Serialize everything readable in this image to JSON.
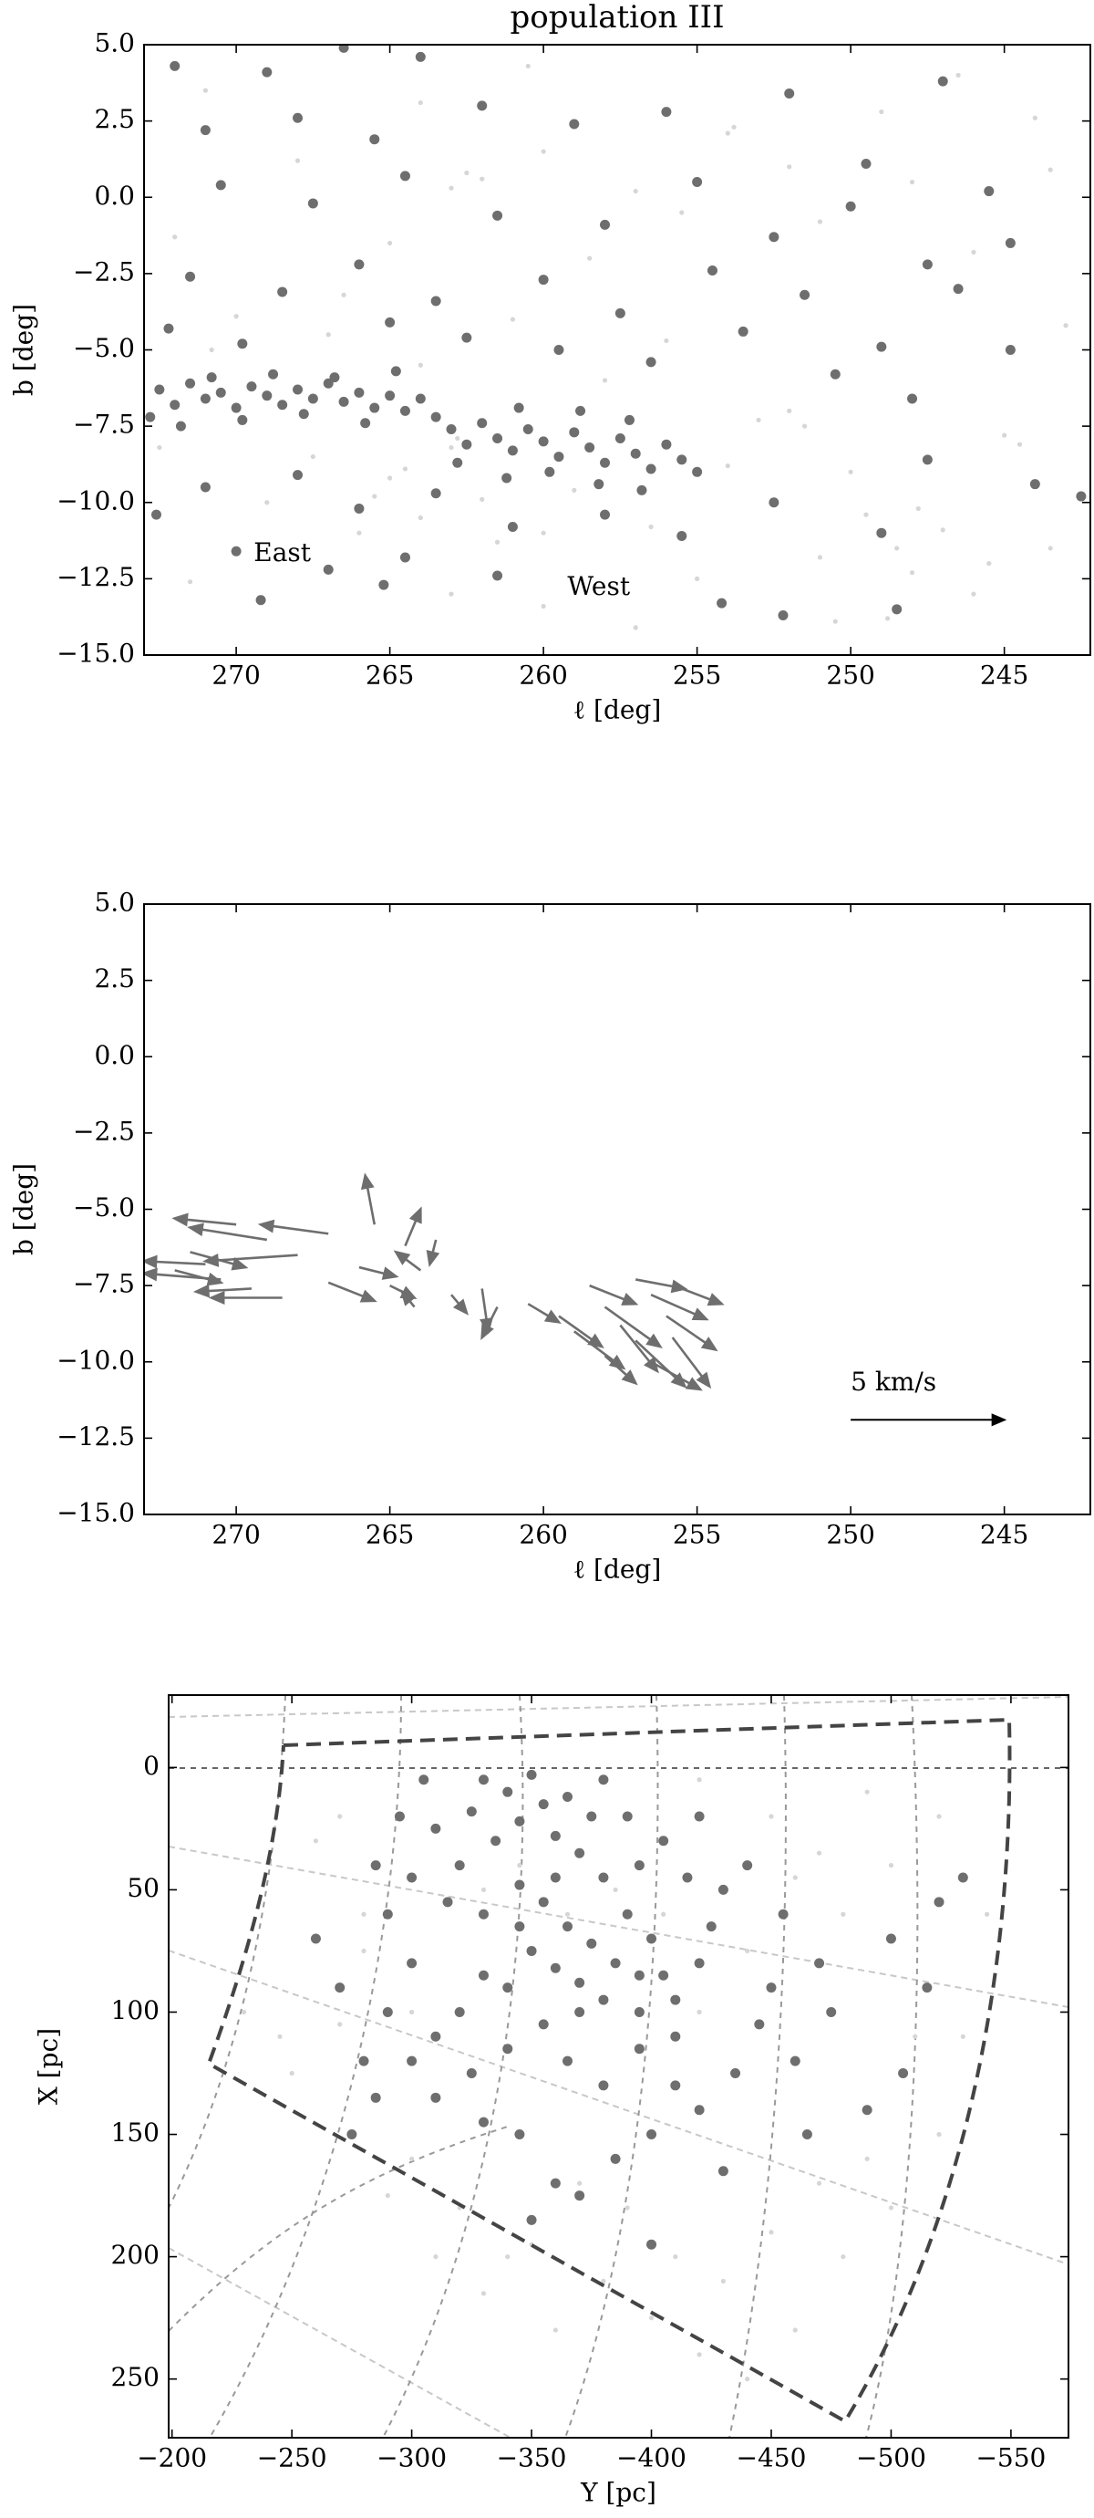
{
  "chart_data": [
    {
      "type": "scatter",
      "title": "population III",
      "xlabel": "ℓ [deg]",
      "ylabel": "b [deg]",
      "xlim": [
        273,
        242.2
      ],
      "ylim": [
        -15,
        5
      ],
      "xticks": [
        270,
        265,
        260,
        255,
        250,
        245
      ],
      "yticks": [
        {
          "value": 5,
          "label": "5.0"
        },
        {
          "value": 2.5,
          "label": "2.5"
        },
        {
          "value": 0,
          "label": "0.0"
        },
        {
          "value": -2.5,
          "label": "−2.5"
        },
        {
          "value": -5,
          "label": "−5.0"
        },
        {
          "value": -7.5,
          "label": "−7.5"
        },
        {
          "value": -10,
          "label": "−10.0"
        },
        {
          "value": -12.5,
          "label": "−12.5"
        },
        {
          "value": -15,
          "label": "−15.0"
        }
      ],
      "annotations": [
        {
          "text": "East",
          "x": 268.5,
          "y": -11.7
        },
        {
          "text": "West",
          "x": 258.2,
          "y": -12.8
        }
      ],
      "series": [
        {
          "color": "#d6d6d6",
          "size": 2.6,
          "x": [
            271,
            268,
            265,
            262.5,
            263,
            262,
            260,
            257,
            254,
            253.8,
            251,
            248,
            246,
            244,
            243,
            272,
            270,
            267,
            264,
            263,
            262.8,
            264.5,
            265,
            262,
            260,
            258,
            256,
            253,
            252,
            251.5,
            250,
            248.5,
            248,
            248.8,
            247,
            245,
            244.5,
            243.5,
            246,
            250.5,
            255,
            257,
            260,
            263,
            266,
            269,
            271.5,
            272.5,
            270.8,
            266.5,
            261,
            258.5,
            255.5,
            252,
            249,
            246.5,
            243.5,
            260.5,
            264,
            267.5,
            265.5,
            264,
            261.5,
            259,
            256.5,
            254,
            251,
            249.5,
            247.8,
            245.5
          ],
          "values": [
            3.5,
            1.2,
            -1.5,
            0.8,
            0.3,
            0.6,
            1.5,
            0.2,
            2.1,
            2.3,
            -0.8,
            0.5,
            -1.8,
            2.6,
            -4.2,
            -1.3,
            -3.9,
            -4.5,
            -5.5,
            -8.2,
            -7.9,
            -8.9,
            -9.2,
            -9.9,
            -11.0,
            -6.0,
            -4.7,
            -7.3,
            -7.0,
            -7.5,
            -9.0,
            -11.5,
            -12.3,
            -13.8,
            -10.9,
            -7.8,
            -8.1,
            -11.5,
            -13.0,
            -13.9,
            -12.5,
            -14.1,
            -13.4,
            -13.0,
            -11.0,
            -10.0,
            -12.6,
            -8.2,
            -5.0,
            -3.2,
            -4.0,
            -2.0,
            -0.5,
            1.0,
            2.8,
            4.0,
            0.9,
            4.3,
            3.1,
            -8.5,
            -9.8,
            -10.5,
            -11.3,
            -9.6,
            -10.8,
            -8.8,
            -11.8,
            -10.4,
            -10.2,
            -12.0
          ]
        },
        {
          "color": "#6e6e6e",
          "size": 5.5,
          "x": [
            272.5,
            272,
            271.5,
            271,
            270.5,
            270,
            269.5,
            269,
            268.5,
            268,
            267.5,
            267,
            266.5,
            266,
            265.5,
            265,
            264.5,
            264,
            272.8,
            271.8,
            270.8,
            269.8,
            268.8,
            267.8,
            266.8,
            265.8,
            264.8,
            263.5,
            263,
            262.5,
            262,
            261.5,
            261,
            260.5,
            260,
            259.5,
            259,
            258.5,
            258,
            257.5,
            257,
            256.5,
            256,
            255.5,
            255,
            262.8,
            261.2,
            259.8,
            258.2,
            256.8,
            260.8,
            258.8,
            257.2,
            272,
            269,
            266.5,
            264,
            271,
            268,
            265.5,
            262,
            259,
            256,
            252,
            247,
            249.5,
            245.5,
            270.5,
            267.5,
            264.5,
            261.5,
            258,
            255,
            252.5,
            250,
            247.5,
            244.8,
            271.5,
            268.5,
            266,
            263.5,
            260,
            257.5,
            254.5,
            251.5,
            249,
            246.5,
            244.8,
            272.2,
            269.8,
            265,
            262.5,
            259.5,
            256.5,
            253.5,
            250.5,
            248,
            271,
            268,
            266,
            263.5,
            261,
            258,
            255.5,
            252.5,
            249,
            247.5,
            244,
            242.5,
            270,
            267,
            264.5,
            261.5,
            254.2,
            252.2,
            248.5,
            265.2,
            269.2,
            272.6
          ],
          "values": [
            -6.3,
            -6.8,
            -6.1,
            -6.6,
            -6.4,
            -6.9,
            -6.2,
            -6.5,
            -6.8,
            -6.3,
            -6.6,
            -6.1,
            -6.7,
            -6.4,
            -6.9,
            -6.5,
            -7.0,
            -6.6,
            -7.2,
            -7.5,
            -5.9,
            -7.3,
            -5.8,
            -7.1,
            -5.9,
            -7.4,
            -5.7,
            -7.2,
            -7.6,
            -8.1,
            -7.4,
            -7.9,
            -8.3,
            -7.6,
            -8.0,
            -8.5,
            -7.7,
            -8.2,
            -8.7,
            -7.9,
            -8.4,
            -8.9,
            -8.1,
            -8.6,
            -9.0,
            -8.7,
            -9.2,
            -9.0,
            -9.4,
            -9.6,
            -6.9,
            -7.0,
            -7.3,
            4.3,
            4.1,
            4.9,
            4.6,
            2.2,
            2.6,
            1.9,
            3.0,
            2.4,
            2.8,
            3.4,
            3.8,
            1.1,
            0.2,
            0.4,
            -0.2,
            0.7,
            -0.6,
            -0.9,
            0.5,
            -1.3,
            -0.3,
            -2.2,
            -1.5,
            -2.6,
            -3.1,
            -2.2,
            -3.4,
            -2.7,
            -3.8,
            -2.4,
            -3.2,
            -4.9,
            -3.0,
            -5.0,
            -4.3,
            -4.8,
            -4.1,
            -4.6,
            -5.0,
            -5.4,
            -4.4,
            -5.8,
            -6.6,
            -9.5,
            -9.1,
            -10.2,
            -9.7,
            -10.8,
            -10.4,
            -11.1,
            -10.0,
            -11.0,
            -8.6,
            -9.4,
            -9.8,
            -11.6,
            -12.2,
            -11.8,
            -12.4,
            -13.3,
            -13.7,
            -13.5,
            -12.7,
            -13.2,
            -10.4
          ]
        }
      ]
    },
    {
      "type": "quiver",
      "xlabel": "ℓ [deg]",
      "ylabel": "b [deg]",
      "color": "#6e6e6e",
      "xlim": [
        273,
        242.2
      ],
      "ylim": [
        -15,
        5
      ],
      "xticks": [
        270,
        265,
        260,
        255,
        250,
        245
      ],
      "yticks": [
        {
          "value": 5,
          "label": "5.0"
        },
        {
          "value": 2.5,
          "label": "2.5"
        },
        {
          "value": 0,
          "label": "0.0"
        },
        {
          "value": -2.5,
          "label": "−2.5"
        },
        {
          "value": -5,
          "label": "−5.0"
        },
        {
          "value": -7.5,
          "label": "−7.5"
        },
        {
          "value": -10,
          "label": "−10.0"
        },
        {
          "value": -12.5,
          "label": "−12.5"
        },
        {
          "value": -15,
          "label": "−15.0"
        }
      ],
      "x": [
        270,
        269,
        268,
        267,
        271,
        270.5,
        269.5,
        268.5,
        272,
        271.5,
        267,
        266,
        265.5,
        264.5,
        264,
        263.5,
        265,
        263,
        264.2,
        262,
        261.5,
        260.5,
        259.5,
        259,
        258.5,
        258,
        257.5,
        257,
        256.5,
        256,
        255.8,
        257,
        255.5,
        258,
        256.5
      ],
      "values": [
        -5.5,
        -6.0,
        -6.5,
        -5.8,
        -6.8,
        -7.3,
        -7.6,
        -7.9,
        -7.0,
        -6.4,
        -7.4,
        -6.9,
        -5.5,
        -6.2,
        -7.0,
        -6.0,
        -7.5,
        -7.8,
        -8.2,
        -7.6,
        -8.2,
        -8.1,
        -8.5,
        -9.0,
        -7.5,
        -8.2,
        -8.8,
        -9.3,
        -7.8,
        -8.5,
        -9.2,
        -7.3,
        -7.6,
        -9.8,
        -10.0
      ],
      "u": [
        2.0,
        2.5,
        3.0,
        2.2,
        2.0,
        2.5,
        1.8,
        2.3,
        -1.5,
        -1.8,
        -1.5,
        -1.2,
        0.3,
        -0.5,
        0.8,
        0.2,
        -0.8,
        -0.5,
        0.4,
        -0.2,
        0.5,
        -1.0,
        -1.4,
        -1.6,
        -1.5,
        -1.8,
        -1.2,
        -1.6,
        -1.8,
        -1.6,
        -1.2,
        -1.6,
        -1.3,
        -1.0,
        -1.6
      ],
      "v": [
        0.2,
        0.4,
        -0.2,
        0.3,
        0.1,
        0.2,
        -0.1,
        0.0,
        -0.4,
        -0.5,
        -0.6,
        -0.3,
        1.6,
        1.2,
        0.6,
        -0.8,
        -0.4,
        -0.6,
        0.5,
        -1.4,
        -1.0,
        -0.6,
        -1.0,
        -1.2,
        -0.6,
        -1.3,
        -1.5,
        -1.5,
        -0.8,
        -1.1,
        -1.6,
        -0.3,
        -0.5,
        -0.9,
        -0.9
      ],
      "key": {
        "label": "5 km/s",
        "x": 250,
        "y": -11.9,
        "u": 5,
        "color": "#000000"
      }
    },
    {
      "type": "scatter",
      "xlabel": "Y [pc]",
      "ylabel": "X [pc]",
      "xlim": [
        -198.6,
        -574
      ],
      "ylim": [
        274,
        -29.6
      ],
      "xticks": [
        {
          "value": -200,
          "label": "−200"
        },
        {
          "value": -250,
          "label": "−250"
        },
        {
          "value": -300,
          "label": "−300"
        },
        {
          "value": -350,
          "label": "−350"
        },
        {
          "value": -400,
          "label": "−400"
        },
        {
          "value": -450,
          "label": "−450"
        },
        {
          "value": -500,
          "label": "−500"
        },
        {
          "value": -550,
          "label": "−550"
        }
      ],
      "yticks": [
        0,
        50,
        100,
        150,
        200,
        250
      ],
      "series": [
        {
          "color": "#d6d6d6",
          "size": 2.6,
          "x": [
            -260,
            -280,
            -300,
            -320,
            -340,
            -360,
            -380,
            -400,
            -420,
            -440,
            -460,
            -480,
            -500,
            -520,
            -530,
            -540,
            -520,
            -490,
            -470,
            -450,
            -420,
            -270,
            -245,
            -230,
            -250,
            -290,
            -310,
            -330,
            -350,
            -370,
            -390,
            -410,
            -430,
            -450,
            -470,
            -490,
            -510,
            -500,
            -480,
            -460,
            -440,
            -420,
            -405,
            -385,
            -365,
            -345,
            -330,
            -300,
            -280,
            -270
          ],
          "values": [
            30,
            75,
            160,
            180,
            200,
            230,
            210,
            225,
            240,
            250,
            230,
            200,
            180,
            150,
            110,
            60,
            20,
            10,
            35,
            20,
            5,
            105,
            110,
            100,
            125,
            175,
            200,
            215,
            195,
            170,
            180,
            200,
            210,
            190,
            170,
            160,
            110,
            40,
            60,
            45,
            75,
            100,
            60,
            50,
            60,
            40,
            50,
            100,
            60,
            20
          ]
        },
        {
          "color": "#6e6e6e",
          "size": 5.5,
          "x": [
            -330,
            -340,
            -350,
            -355,
            -345,
            -360,
            -365,
            -370,
            -375,
            -335,
            -325,
            -320,
            -315,
            -330,
            -345,
            -355,
            -365,
            -375,
            -385,
            -390,
            -380,
            -395,
            -400,
            -405,
            -410,
            -395,
            -380,
            -370,
            -360,
            -350,
            -340,
            -330,
            -320,
            -310,
            -300,
            -310,
            -325,
            -340,
            -355,
            -365,
            -380,
            -395,
            -410,
            -420,
            -425,
            -430,
            -415,
            -440,
            -455,
            -450,
            -445,
            -435,
            -420,
            -400,
            -385,
            -370,
            -360,
            -345,
            -330,
            -300,
            -290,
            -285,
            -295,
            -305,
            -290,
            -280,
            -270,
            -260,
            -275,
            -285,
            -310,
            -300,
            -390,
            -405,
            -420,
            -380,
            -360,
            -345,
            -370,
            -395,
            -410,
            -460,
            -470,
            -500,
            -520,
            -530,
            -515,
            -505,
            -490,
            -475,
            -465,
            -430,
            -400,
            -350
          ],
          "values": [
            5,
            10,
            3,
            15,
            22,
            28,
            12,
            35,
            20,
            30,
            18,
            40,
            55,
            60,
            48,
            55,
            65,
            72,
            80,
            60,
            45,
            40,
            70,
            85,
            95,
            100,
            95,
            88,
            82,
            75,
            90,
            85,
            100,
            110,
            120,
            135,
            125,
            115,
            105,
            120,
            130,
            115,
            110,
            80,
            65,
            50,
            45,
            40,
            60,
            90,
            105,
            125,
            140,
            150,
            160,
            175,
            170,
            150,
            145,
            80,
            60,
            40,
            20,
            5,
            100,
            120,
            90,
            70,
            150,
            135,
            25,
            45,
            20,
            30,
            20,
            5,
            45,
            65,
            100,
            85,
            130,
            120,
            80,
            70,
            55,
            45,
            90,
            125,
            140,
            100,
            150,
            165,
            195,
            185
          ]
        }
      ]
    }
  ]
}
